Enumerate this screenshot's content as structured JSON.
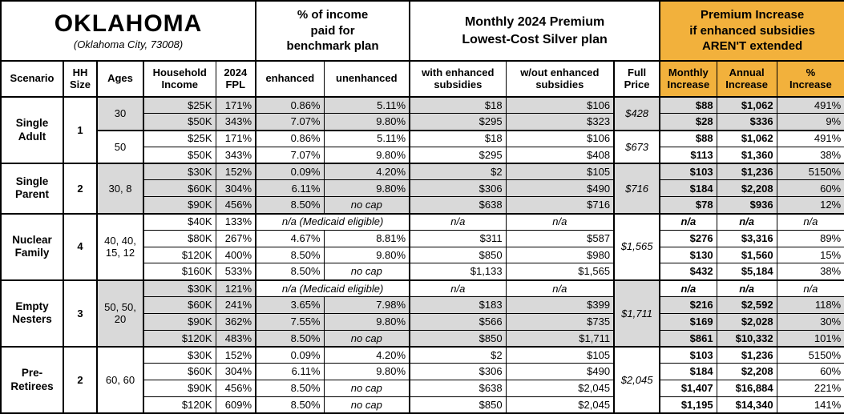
{
  "title": {
    "state": "OKLAHOMA",
    "city": "(Oklahoma City, 73008)"
  },
  "header_boxes": {
    "income_pct": "% of income\npaid for\nbenchmark plan",
    "premium": "Monthly 2024 Premium\nLowest-Cost Silver plan",
    "increase": "Premium Increase\nif enhanced subsidies\nAREN'T extended"
  },
  "columns": {
    "scenario": "Scenario",
    "hh": "HH\nSize",
    "ages": "Ages",
    "income": "Household\nIncome",
    "fpl": "2024\nFPL",
    "enhanced": "enhanced",
    "unenhanced": "unenhanced",
    "with_s": "with enhanced\nsubsidies",
    "without_s": "w/out enhanced\nsubsidies",
    "full": "Full\nPrice",
    "monthly": "Monthly\nIncrease",
    "annual": "Annual\nIncrease",
    "pct": "%\nIncrease"
  },
  "labels": {
    "medicaid": "n/a (Medicaid eligible)",
    "na": "n/a",
    "no_cap": "no cap"
  },
  "colors": {
    "accent_orange": "#F2B13C",
    "row_shade_gray": "#D9D9D9",
    "border_black": "#000000"
  },
  "groups": [
    {
      "scenario": "Single\nAdult",
      "hh": "1",
      "subgroups": [
        {
          "ages": "30",
          "full_price": "$428",
          "shaded": true,
          "rows": [
            {
              "income": "$25K",
              "fpl": "171%",
              "enh": "0.86%",
              "unenh": "5.11%",
              "with_s": "$18",
              "wo_s": "$106",
              "mon": "$88",
              "ann": "$1,062",
              "pct": "491%"
            },
            {
              "income": "$50K",
              "fpl": "343%",
              "enh": "7.07%",
              "unenh": "9.80%",
              "with_s": "$295",
              "wo_s": "$323",
              "mon": "$28",
              "ann": "$336",
              "pct": "9%"
            }
          ]
        },
        {
          "ages": "50",
          "full_price": "$673",
          "shaded": false,
          "rows": [
            {
              "income": "$25K",
              "fpl": "171%",
              "enh": "0.86%",
              "unenh": "5.11%",
              "with_s": "$18",
              "wo_s": "$106",
              "mon": "$88",
              "ann": "$1,062",
              "pct": "491%"
            },
            {
              "income": "$50K",
              "fpl": "343%",
              "enh": "7.07%",
              "unenh": "9.80%",
              "with_s": "$295",
              "wo_s": "$408",
              "mon": "$113",
              "ann": "$1,360",
              "pct": "38%"
            }
          ]
        }
      ]
    },
    {
      "scenario": "Single\nParent",
      "hh": "2",
      "subgroups": [
        {
          "ages": "30, 8",
          "full_price": "$716",
          "shaded": true,
          "rows": [
            {
              "income": "$30K",
              "fpl": "152%",
              "enh": "0.09%",
              "unenh": "4.20%",
              "with_s": "$2",
              "wo_s": "$105",
              "mon": "$103",
              "ann": "$1,236",
              "pct": "5150%"
            },
            {
              "income": "$60K",
              "fpl": "304%",
              "enh": "6.11%",
              "unenh": "9.80%",
              "with_s": "$306",
              "wo_s": "$490",
              "mon": "$184",
              "ann": "$2,208",
              "pct": "60%"
            },
            {
              "income": "$90K",
              "fpl": "456%",
              "enh": "8.50%",
              "unenh": "no cap",
              "with_s": "$638",
              "wo_s": "$716",
              "mon": "$78",
              "ann": "$936",
              "pct": "12%"
            }
          ]
        }
      ]
    },
    {
      "scenario": "Nuclear\nFamily",
      "hh": "4",
      "subgroups": [
        {
          "ages": "40, 40,\n15, 12",
          "full_price": "$1,565",
          "shaded": false,
          "rows": [
            {
              "income": "$40K",
              "fpl": "133%",
              "medicaid": true
            },
            {
              "income": "$80K",
              "fpl": "267%",
              "enh": "4.67%",
              "unenh": "8.81%",
              "with_s": "$311",
              "wo_s": "$587",
              "mon": "$276",
              "ann": "$3,316",
              "pct": "89%"
            },
            {
              "income": "$120K",
              "fpl": "400%",
              "enh": "8.50%",
              "unenh": "9.80%",
              "with_s": "$850",
              "wo_s": "$980",
              "mon": "$130",
              "ann": "$1,560",
              "pct": "15%"
            },
            {
              "income": "$160K",
              "fpl": "533%",
              "enh": "8.50%",
              "unenh": "no cap",
              "with_s": "$1,133",
              "wo_s": "$1,565",
              "mon": "$432",
              "ann": "$5,184",
              "pct": "38%"
            }
          ]
        }
      ]
    },
    {
      "scenario": "Empty\nNesters",
      "hh": "3",
      "subgroups": [
        {
          "ages": "50, 50,\n20",
          "full_price": "$1,711",
          "shaded": true,
          "rows": [
            {
              "income": "$30K",
              "fpl": "121%",
              "medicaid": true
            },
            {
              "income": "$60K",
              "fpl": "241%",
              "enh": "3.65%",
              "unenh": "7.98%",
              "with_s": "$183",
              "wo_s": "$399",
              "mon": "$216",
              "ann": "$2,592",
              "pct": "118%"
            },
            {
              "income": "$90K",
              "fpl": "362%",
              "enh": "7.55%",
              "unenh": "9.80%",
              "with_s": "$566",
              "wo_s": "$735",
              "mon": "$169",
              "ann": "$2,028",
              "pct": "30%"
            },
            {
              "income": "$120K",
              "fpl": "483%",
              "enh": "8.50%",
              "unenh": "no cap",
              "with_s": "$850",
              "wo_s": "$1,711",
              "mon": "$861",
              "ann": "$10,332",
              "pct": "101%"
            }
          ]
        }
      ]
    },
    {
      "scenario": "Pre-\nRetirees",
      "hh": "2",
      "subgroups": [
        {
          "ages": "60, 60",
          "full_price": "$2,045",
          "shaded": false,
          "rows": [
            {
              "income": "$30K",
              "fpl": "152%",
              "enh": "0.09%",
              "unenh": "4.20%",
              "with_s": "$2",
              "wo_s": "$105",
              "mon": "$103",
              "ann": "$1,236",
              "pct": "5150%"
            },
            {
              "income": "$60K",
              "fpl": "304%",
              "enh": "6.11%",
              "unenh": "9.80%",
              "with_s": "$306",
              "wo_s": "$490",
              "mon": "$184",
              "ann": "$2,208",
              "pct": "60%"
            },
            {
              "income": "$90K",
              "fpl": "456%",
              "enh": "8.50%",
              "unenh": "no cap",
              "with_s": "$638",
              "wo_s": "$2,045",
              "mon": "$1,407",
              "ann": "$16,884",
              "pct": "221%"
            },
            {
              "income": "$120K",
              "fpl": "609%",
              "enh": "8.50%",
              "unenh": "no cap",
              "with_s": "$850",
              "wo_s": "$2,045",
              "mon": "$1,195",
              "ann": "$14,340",
              "pct": "141%"
            }
          ]
        }
      ]
    }
  ]
}
